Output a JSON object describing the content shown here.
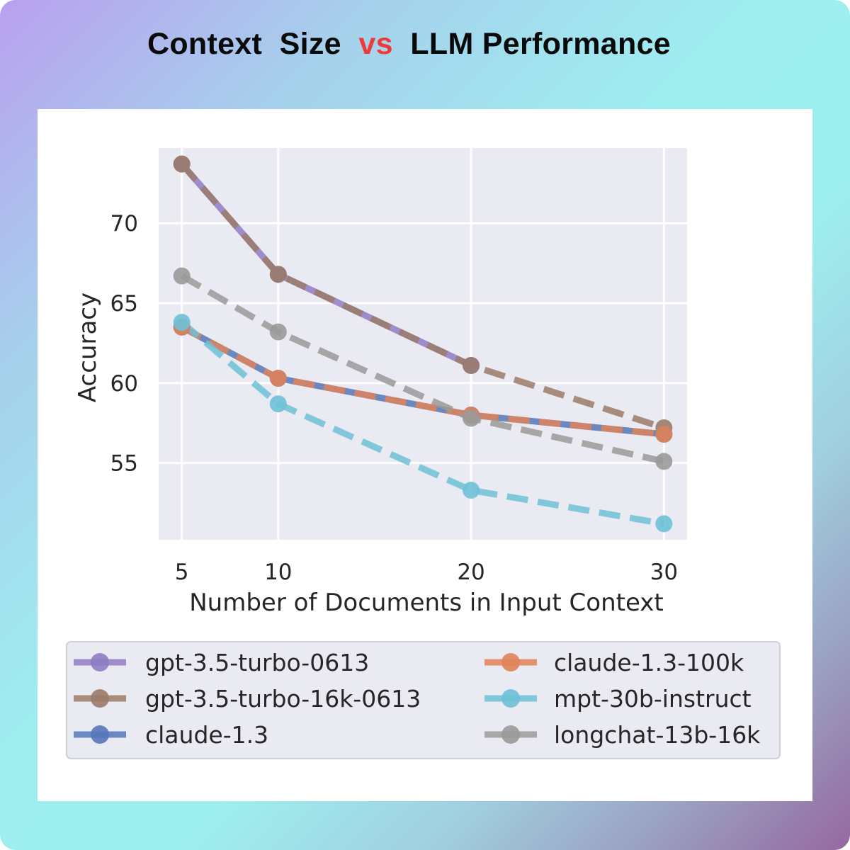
{
  "page": {
    "title_parts": [
      "Context  Size  ",
      "vs",
      "  LLM Performance"
    ],
    "title_vs_color": "#f03a3a"
  },
  "chart_data": {
    "type": "line",
    "title": "Context  Size  vs  LLM Performance",
    "xlabel": "Number of Documents in Input Context",
    "ylabel": "Accuracy",
    "x": [
      5,
      10,
      20,
      30
    ],
    "xticks": [
      "5",
      "10",
      "20",
      "30"
    ],
    "yticks": [
      "55",
      "60",
      "65",
      "70"
    ],
    "xlim": [
      3.8,
      31.2
    ],
    "ylim": [
      50.2,
      74.7
    ],
    "grid": true,
    "legend_position": "bottom",
    "series": [
      {
        "name": "gpt-3.5-turbo-0613",
        "color": "#8f7cc4",
        "dash": "solid",
        "x": [
          5,
          10,
          20
        ],
        "values": [
          73.7,
          66.8,
          61.1
        ]
      },
      {
        "name": "gpt-3.5-turbo-16k-0613",
        "color": "#9b7b6a",
        "dash": "dashed",
        "x": [
          5,
          10,
          20,
          30
        ],
        "values": [
          73.7,
          66.8,
          61.1,
          57.2
        ]
      },
      {
        "name": "claude-1.3",
        "color": "#5677b8",
        "dash": "solid",
        "x": [
          5,
          10,
          20,
          30
        ],
        "values": [
          63.5,
          60.3,
          58.0,
          56.8
        ]
      },
      {
        "name": "claude-1.3-100k",
        "color": "#e08358",
        "dash": "dashed",
        "x": [
          5,
          10,
          20,
          30
        ],
        "values": [
          63.5,
          60.3,
          58.0,
          56.8
        ]
      },
      {
        "name": "mpt-30b-instruct",
        "color": "#6ec1d6",
        "dash": "dashed",
        "x": [
          5,
          10,
          20,
          30
        ],
        "values": [
          63.8,
          58.7,
          53.3,
          51.2
        ]
      },
      {
        "name": "longchat-13b-16k",
        "color": "#9a9a9a",
        "dash": "dashed",
        "x": [
          5,
          10,
          20,
          30
        ],
        "values": [
          66.7,
          63.2,
          57.8,
          55.1
        ]
      }
    ]
  }
}
